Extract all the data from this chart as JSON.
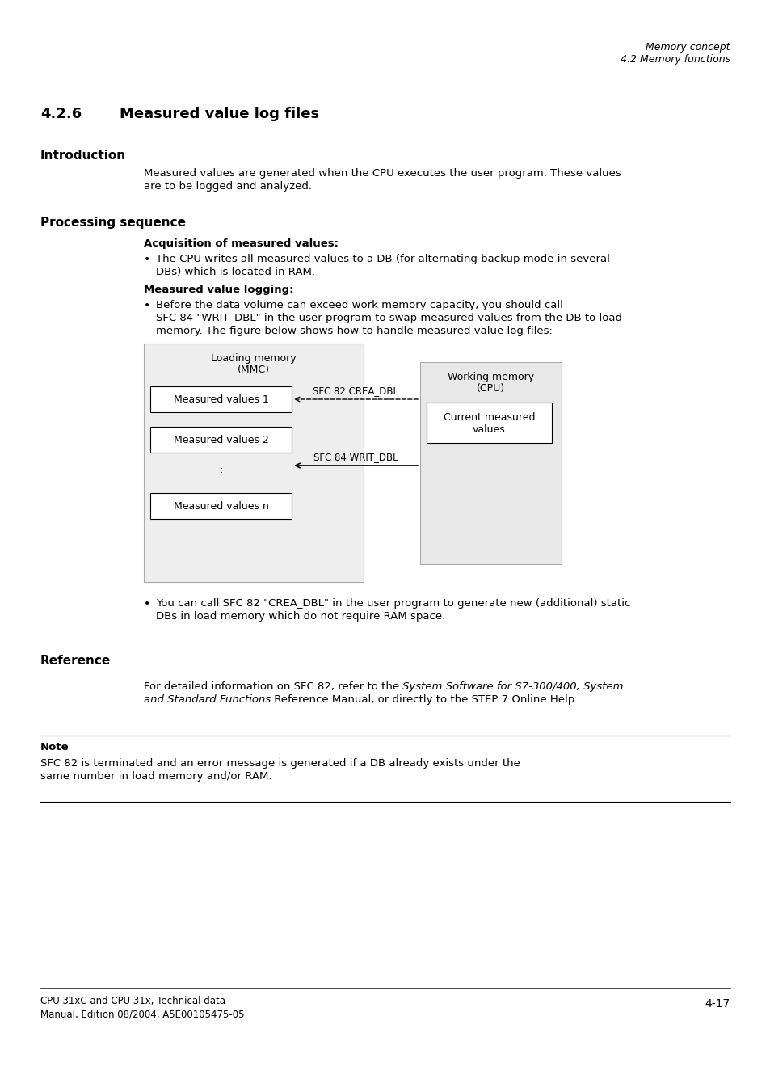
{
  "bg_color": "#ffffff",
  "header_line1": "Memory concept",
  "header_line2": "4.2 Memory functions",
  "intro_heading": "Introduction",
  "intro_text": "Measured values are generated when the CPU executes the user program. These values\nare to be logged and analyzed.",
  "proc_heading": "Processing sequence",
  "acq_heading": "Acquisition of measured values:",
  "acq_bullet": "The CPU writes all measured values to a DB (for alternating backup mode in several\nDBs) which is located in RAM.",
  "log_heading": "Measured value logging:",
  "log_bullet1": "Before the data volume can exceed work memory capacity, you should call",
  "log_bullet2": "SFC 84 \"WRIT_DBL\" in the user program to swap measured values from the DB to load",
  "log_bullet3": "memory. The figure below shows how to handle measured value log files:",
  "diagram_left_label1": "Loading memory",
  "diagram_left_label2": "(MMC)",
  "diagram_box1": "Measured values 1",
  "diagram_box2": "Measured values 2",
  "diagram_dot": ":",
  "diagram_boxn": "Measured values n",
  "diagram_right_label1": "Working memory",
  "diagram_right_label2": "(CPU)",
  "diagram_right_box": "Current measured\nvalues",
  "arrow1_label": "SFC 82 CREA_DBL",
  "arrow2_label": "SFC 84 WRIT_DBL",
  "bullet3_line1": "You can call SFC 82 \"CREA_DBL\" in the user program to generate new (additional) static",
  "bullet3_line2": "DBs in load memory which do not require RAM space.",
  "ref_heading": "Reference",
  "ref_line1_normal": "For detailed information on SFC 82, refer to the ",
  "ref_line1_italic": "System Software for S7-300/400, System",
  "ref_line2_italic": "and Standard Functions",
  "ref_line2_normal": " Reference Manual, or directly to the STEP 7 Online Help.",
  "note_heading": "Note",
  "note_text1": "SFC 82 is terminated and an error message is generated if a DB already exists under the",
  "note_text2": "same number in load memory and/or RAM.",
  "footer_left1": "CPU 31xC and CPU 31x, Technical data",
  "footer_left2": "Manual, Edition 08/2004, A5E00105475-05",
  "footer_right": "4-17"
}
